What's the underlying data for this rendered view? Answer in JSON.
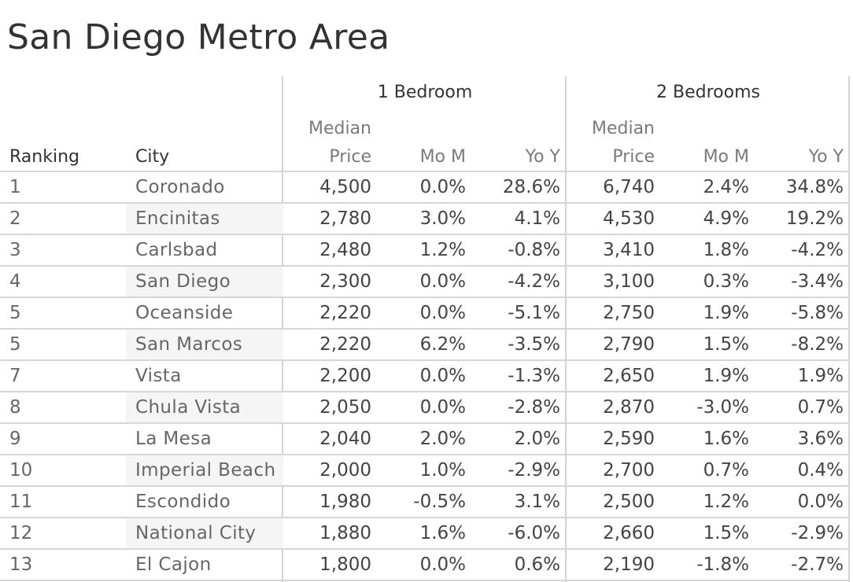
{
  "title": "San Diego Metro Area",
  "chart_data": {
    "type": "table",
    "title": "San Diego Metro Area",
    "group_headers": [
      "1 Bedroom",
      "2 Bedrooms"
    ],
    "column_headers": {
      "ranking": "Ranking",
      "city": "City",
      "median_line1": "Median",
      "median_line2": "Price",
      "mom": "Mo M",
      "yoy": "Yo Y"
    },
    "rows": [
      {
        "rank": "1",
        "city": "Coronado",
        "b1_price": "4,500",
        "b1_mom": "0.0%",
        "b1_yoy": "28.6%",
        "b2_price": "6,740",
        "b2_mom": "2.4%",
        "b2_yoy": "34.8%"
      },
      {
        "rank": "2",
        "city": "Encinitas",
        "b1_price": "2,780",
        "b1_mom": "3.0%",
        "b1_yoy": "4.1%",
        "b2_price": "4,530",
        "b2_mom": "4.9%",
        "b2_yoy": "19.2%"
      },
      {
        "rank": "3",
        "city": "Carlsbad",
        "b1_price": "2,480",
        "b1_mom": "1.2%",
        "b1_yoy": "-0.8%",
        "b2_price": "3,410",
        "b2_mom": "1.8%",
        "b2_yoy": "-4.2%"
      },
      {
        "rank": "4",
        "city": "San Diego",
        "b1_price": "2,300",
        "b1_mom": "0.0%",
        "b1_yoy": "-4.2%",
        "b2_price": "3,100",
        "b2_mom": "0.3%",
        "b2_yoy": "-3.4%"
      },
      {
        "rank": "5",
        "city": "Oceanside",
        "b1_price": "2,220",
        "b1_mom": "0.0%",
        "b1_yoy": "-5.1%",
        "b2_price": "2,750",
        "b2_mom": "1.9%",
        "b2_yoy": "-5.8%"
      },
      {
        "rank": "5",
        "city": "San Marcos",
        "b1_price": "2,220",
        "b1_mom": "6.2%",
        "b1_yoy": "-3.5%",
        "b2_price": "2,790",
        "b2_mom": "1.5%",
        "b2_yoy": "-8.2%"
      },
      {
        "rank": "7",
        "city": "Vista",
        "b1_price": "2,200",
        "b1_mom": "0.0%",
        "b1_yoy": "-1.3%",
        "b2_price": "2,650",
        "b2_mom": "1.9%",
        "b2_yoy": "1.9%"
      },
      {
        "rank": "8",
        "city": "Chula Vista",
        "b1_price": "2,050",
        "b1_mom": "0.0%",
        "b1_yoy": "-2.8%",
        "b2_price": "2,870",
        "b2_mom": "-3.0%",
        "b2_yoy": "0.7%"
      },
      {
        "rank": "9",
        "city": "La Mesa",
        "b1_price": "2,040",
        "b1_mom": "2.0%",
        "b1_yoy": "2.0%",
        "b2_price": "2,590",
        "b2_mom": "1.6%",
        "b2_yoy": "3.6%"
      },
      {
        "rank": "10",
        "city": "Imperial Beach",
        "b1_price": "2,000",
        "b1_mom": "1.0%",
        "b1_yoy": "-2.9%",
        "b2_price": "2,700",
        "b2_mom": "0.7%",
        "b2_yoy": "0.4%"
      },
      {
        "rank": "11",
        "city": "Escondido",
        "b1_price": "1,980",
        "b1_mom": "-0.5%",
        "b1_yoy": "3.1%",
        "b2_price": "2,500",
        "b2_mom": "1.2%",
        "b2_yoy": "0.0%"
      },
      {
        "rank": "12",
        "city": "National City",
        "b1_price": "1,880",
        "b1_mom": "1.6%",
        "b1_yoy": "-6.0%",
        "b2_price": "2,660",
        "b2_mom": "1.5%",
        "b2_yoy": "-2.9%"
      },
      {
        "rank": "13",
        "city": "El Cajon",
        "b1_price": "1,800",
        "b1_mom": "0.0%",
        "b1_yoy": "0.6%",
        "b2_price": "2,190",
        "b2_mom": "-1.8%",
        "b2_yoy": "-2.7%"
      }
    ]
  }
}
